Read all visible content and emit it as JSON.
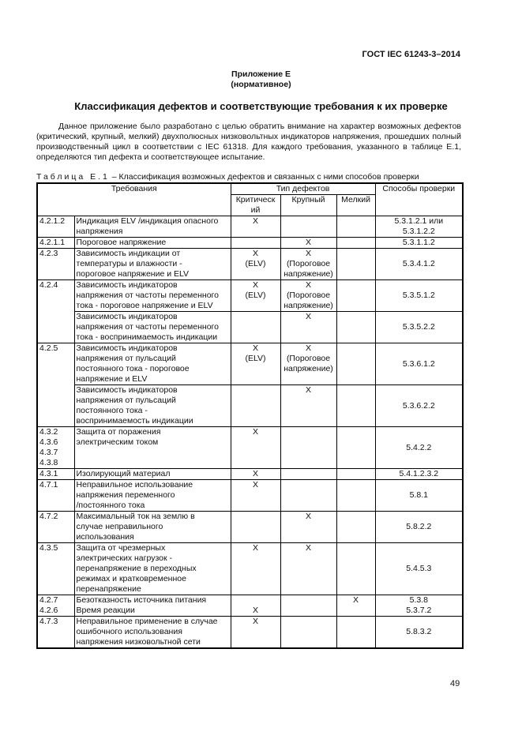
{
  "header": "ГОСТ IEC 61243-3–2014",
  "appendix": "Приложение Е",
  "appendix_type": "(нормативное)",
  "title": "Классификация дефектов и соответствующие требования к их проверке",
  "paragraph": "Данное приложение было разработано с целью обратить внимание на характер возможных дефектов (критический, крупный, мелкий) двухполюсных низковольтных индикаторов напряжения, прошедших полный производственный цикл в соответствии с IEC 61318. Для каждого требования, указанного в таблице Е.1, определяются тип дефекта и соответствующее испытание.",
  "caption_label": "Таблица Е.1",
  "caption_text": " – Классификация возможных дефектов и связанных с ними способов проверки",
  "table": {
    "col_requirements": "Требования",
    "col_defect_type": "Тип дефектов",
    "col_methods": "Способы проверки",
    "col_critical": "Критическ ий",
    "col_major": "Крупный",
    "col_minor": "Мелкий",
    "rows": [
      {
        "clause": [
          "4.2.1.2"
        ],
        "req": [
          "Индикация ELV /индикация опасного",
          "напряжения"
        ],
        "crit": [
          "X"
        ],
        "major": [],
        "minor": [],
        "method": [
          "5.3.1.2.1 или",
          "5.3.1.2.2"
        ]
      },
      {
        "clause": [
          "4.2.1.1"
        ],
        "req": [
          "Пороговое напряжение"
        ],
        "crit": [],
        "major": [
          "X"
        ],
        "minor": [],
        "method": [
          "5.3.1.1.2"
        ]
      },
      {
        "clause": [
          "4.2.3"
        ],
        "req": [
          "Зависимость индикации от",
          "температуры и влажности -",
          "пороговое напряжение и ELV"
        ],
        "crit": [
          "X",
          "(ELV)"
        ],
        "major": [
          "X",
          "(Пороговое",
          "напряжение)"
        ],
        "minor": [],
        "method": [
          "5.3.4.1.2"
        ]
      },
      {
        "clause": [
          "4.2.4"
        ],
        "span": 2,
        "req": [
          "Зависимость индикаторов",
          "напряжения от частоты переменного",
          "тока - пороговое напряжение и ELV"
        ],
        "crit": [
          "X",
          "(ELV)"
        ],
        "major": [
          "X",
          "(Пороговое",
          "напряжение)"
        ],
        "minor": [],
        "method": [
          "5.3.5.1.2"
        ]
      },
      {
        "clause": null,
        "req": [
          "Зависимость индикаторов",
          "напряжения от частоты переменного",
          "тока - воспринимаемость индикации"
        ],
        "crit": [],
        "major": [
          "X"
        ],
        "minor": [],
        "method": [
          "5.3.5.2.2"
        ]
      },
      {
        "clause": [
          "4.2.5"
        ],
        "span": 2,
        "req": [
          "Зависимость индикаторов",
          "напряжения от пульсаций",
          "постоянного тока - пороговое",
          "напряжение и ELV"
        ],
        "crit": [
          "X",
          "(ELV)"
        ],
        "major": [
          "X",
          "(Пороговое",
          "напряжение)"
        ],
        "minor": [],
        "method": [
          "5.3.6.1.2"
        ]
      },
      {
        "clause": null,
        "req": [
          "Зависимость индикаторов",
          "напряжения от пульсаций",
          "постоянного тока -",
          "воспринимаемость индикации"
        ],
        "crit": [],
        "major": [
          "X"
        ],
        "minor": [],
        "method": [
          "5.3.6.2.2"
        ]
      },
      {
        "clause": [
          "4.3.2",
          "4.3.6",
          "4.3.7",
          "4.3.8"
        ],
        "req": [
          "Защита от поражения",
          "электрическим током"
        ],
        "crit": [
          "X"
        ],
        "major": [],
        "minor": [],
        "method": [
          "5.4.2.2"
        ]
      },
      {
        "clause": [
          "4.3.1"
        ],
        "req": [
          "Изолирующий материал"
        ],
        "crit": [
          "X"
        ],
        "major": [],
        "minor": [],
        "method": [
          "5.4.1.2.3.2"
        ]
      },
      {
        "clause": [
          "4.7.1"
        ],
        "req": [
          "Неправильное использование",
          "напряжения переменного",
          "/постоянного тока"
        ],
        "crit": [
          "X"
        ],
        "major": [],
        "minor": [],
        "method": [
          "5.8.1"
        ]
      },
      {
        "clause": [
          "4.7.2"
        ],
        "req": [
          "Максимальный ток на землю в",
          "случае неправильного",
          "использования"
        ],
        "crit": [],
        "major": [
          "X"
        ],
        "minor": [],
        "method": [
          "5.8.2.2"
        ]
      },
      {
        "clause": [
          "4.3.5"
        ],
        "req": [
          "Защита от чрезмерных",
          "электрических нагрузок -",
          "перенапряжение в переходных",
          "режимах и кратковременное",
          "перенапряжение"
        ],
        "crit": [
          "X"
        ],
        "major": [
          "X"
        ],
        "minor": [],
        "method": [
          "5.4.5.3"
        ]
      },
      {
        "clause": [
          "4.2.7",
          "4.2.6"
        ],
        "req": [
          "Безотказность источника питания",
          "Время реакции"
        ],
        "crit": [
          "",
          "X"
        ],
        "major": [],
        "minor": [
          "X"
        ],
        "method": [
          "5.3.8",
          "5.3.7.2"
        ]
      },
      {
        "clause": [
          "4.7.3"
        ],
        "req": [
          "Неправильное применение в случае",
          "ошибочного использования",
          "напряжения низковольтной сети"
        ],
        "crit": [
          "X"
        ],
        "major": [],
        "minor": [],
        "method": [
          "5.8.3.2"
        ]
      }
    ]
  },
  "page_number": "49"
}
